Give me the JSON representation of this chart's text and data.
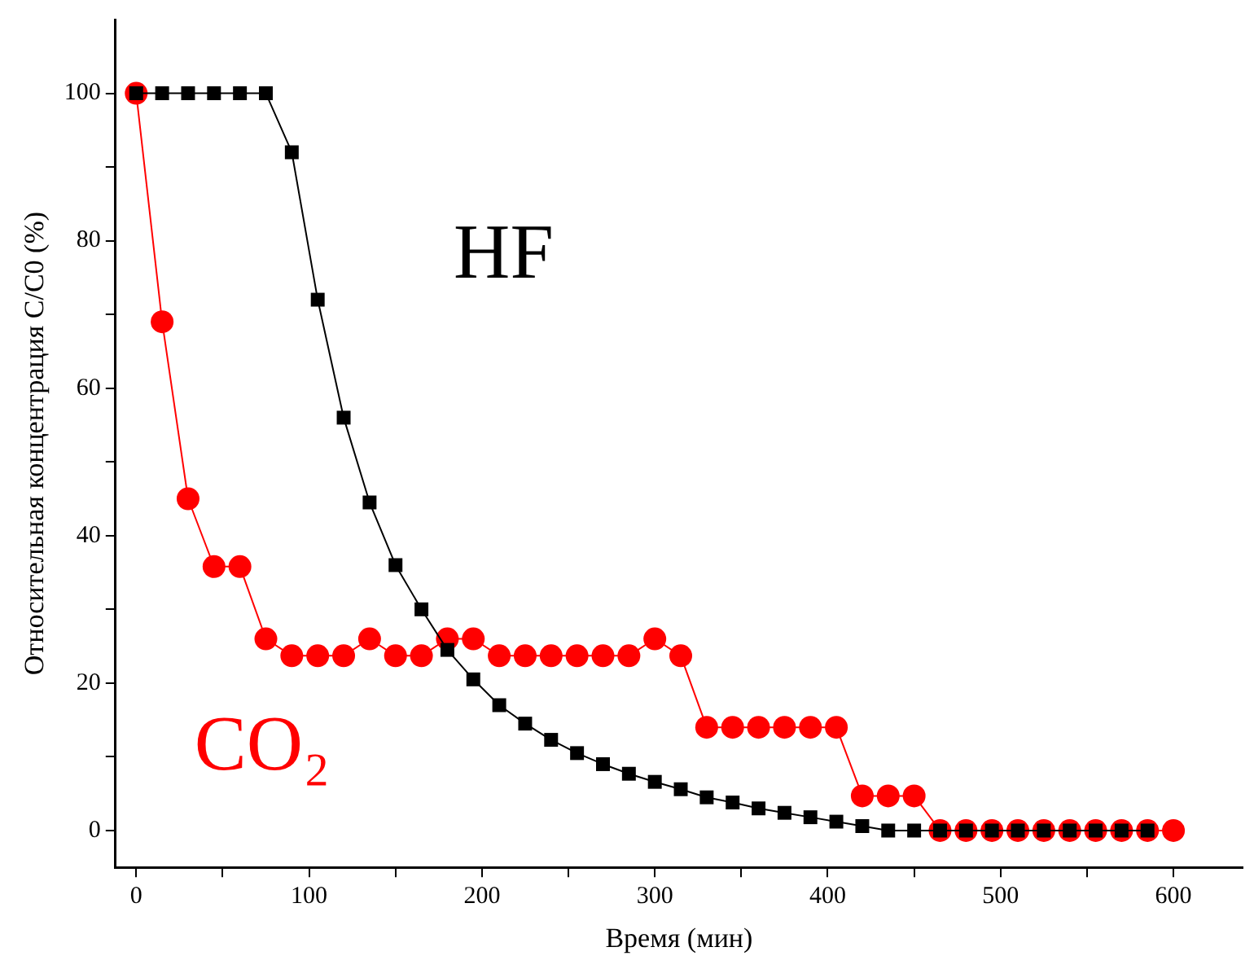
{
  "chart_data": {
    "type": "line",
    "xlabel": "Время (мин)",
    "ylabel": "Относительная концентрация C/C0 (%)",
    "xlim": [
      -12,
      640
    ],
    "ylim": [
      -5,
      110
    ],
    "xticks": [
      0,
      {
        "value": 50,
        "label": null
      },
      100,
      {
        "value": 150,
        "label": null
      },
      200,
      {
        "value": 250,
        "label": null
      },
      300,
      {
        "value": 350,
        "label": null
      },
      400,
      {
        "value": 450,
        "label": null
      },
      500,
      {
        "value": 550,
        "label": null
      },
      600
    ],
    "yticks": [
      0,
      {
        "value": 10,
        "label": null
      },
      20,
      {
        "value": 30,
        "label": null
      },
      40,
      {
        "value": 50,
        "label": null
      },
      60,
      {
        "value": 70,
        "label": null
      },
      80,
      {
        "value": 90,
        "label": null
      },
      100
    ],
    "grid": false,
    "legend": false,
    "line_style": "solid",
    "series": [
      {
        "name": "CO₂",
        "color": "#ff0000",
        "marker": "circle",
        "x": [
          0,
          15,
          30,
          45,
          60,
          75,
          90,
          105,
          120,
          135,
          150,
          165,
          180,
          195,
          210,
          225,
          240,
          255,
          270,
          285,
          300,
          315,
          330,
          345,
          360,
          375,
          390,
          405,
          420,
          435,
          450,
          465,
          480,
          495,
          510,
          525,
          540,
          555,
          570,
          585,
          600
        ],
        "values": [
          100,
          69,
          45,
          35.8,
          35.8,
          26,
          23.7,
          23.7,
          23.7,
          26,
          23.7,
          23.7,
          26,
          26,
          23.7,
          23.7,
          23.7,
          23.7,
          23.7,
          23.7,
          26,
          23.7,
          14,
          14,
          14,
          14,
          14,
          14,
          4.7,
          4.7,
          4.7,
          0,
          0,
          0,
          0,
          0,
          0,
          0,
          0,
          0,
          0
        ]
      },
      {
        "name": "HF",
        "color": "#000000",
        "marker": "square",
        "x": [
          0,
          15,
          30,
          45,
          60,
          75,
          90,
          105,
          120,
          135,
          150,
          165,
          180,
          195,
          210,
          225,
          240,
          255,
          270,
          285,
          300,
          315,
          330,
          345,
          360,
          375,
          390,
          405,
          420,
          435,
          450,
          465,
          480,
          495,
          510,
          525,
          540,
          555,
          570,
          585
        ],
        "values": [
          100,
          100,
          100,
          100,
          100,
          100,
          92,
          72,
          56,
          44.5,
          36,
          30,
          24.5,
          20.5,
          17,
          14.5,
          12.3,
          10.5,
          9,
          7.7,
          6.6,
          5.6,
          4.5,
          3.8,
          3,
          2.4,
          1.8,
          1.2,
          0.6,
          0,
          0,
          0,
          0,
          0,
          0,
          0,
          0,
          0,
          0,
          0
        ]
      }
    ]
  }
}
